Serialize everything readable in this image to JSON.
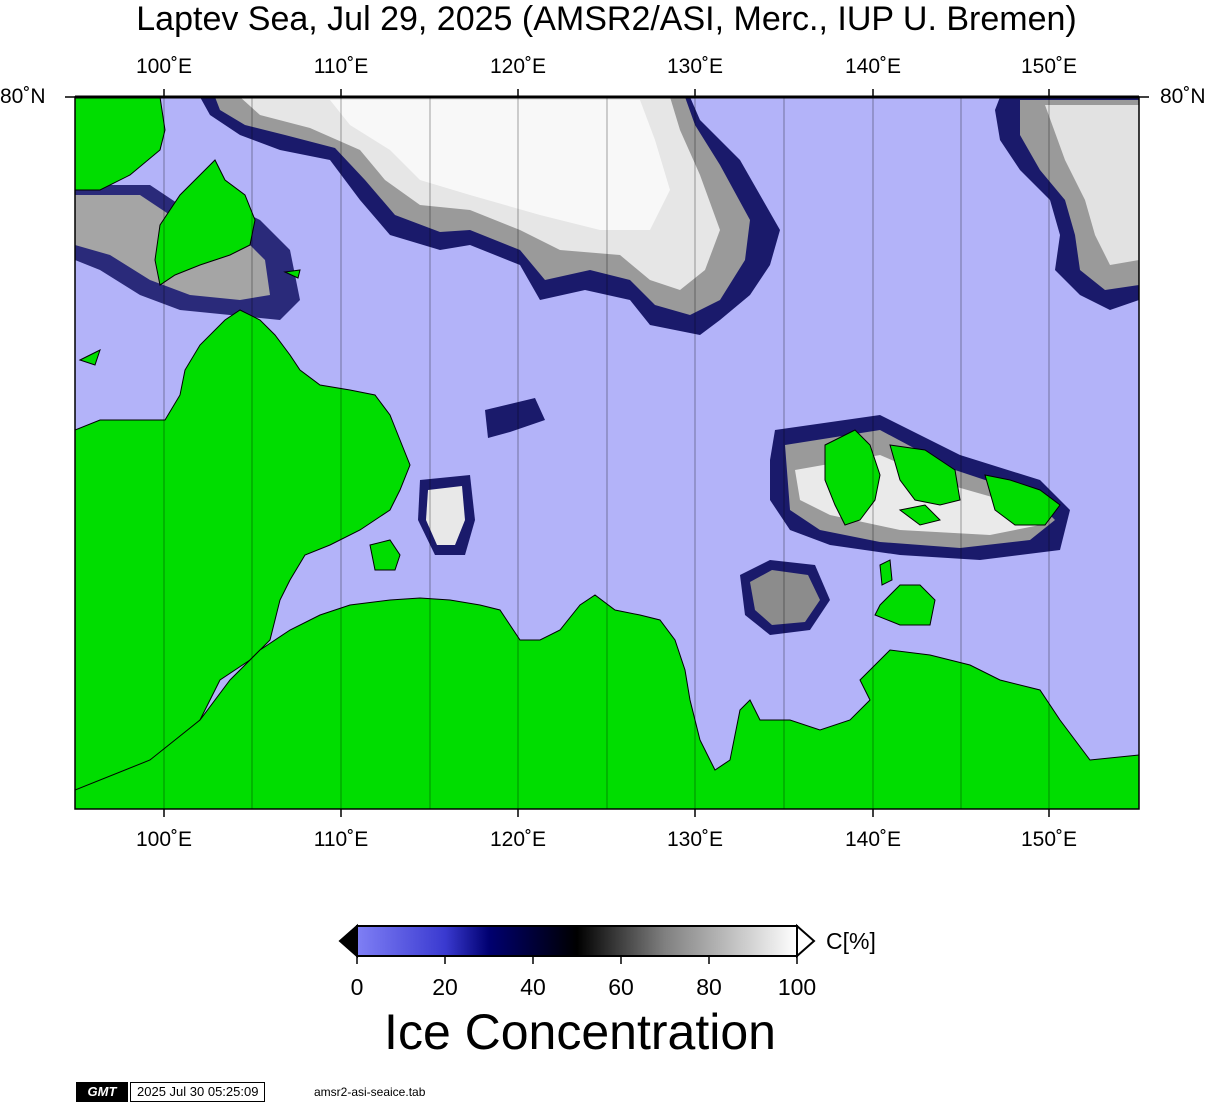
{
  "title": "Laptev Sea, Jul 29, 2025 (AMSR2/ASI, Merc., IUP U. Bremen)",
  "map": {
    "lon_labels": [
      "100˚E",
      "110˚E",
      "120˚E",
      "130˚E",
      "140˚E",
      "150˚E"
    ],
    "lat_label_left": "80˚N",
    "lat_label_right": "80˚N",
    "lon_range": [
      95,
      155
    ],
    "colors": {
      "open_water": "#b3b3f9",
      "land": "#00dd00",
      "coast_outline": "#000000",
      "ice_high": "#f5f5f5",
      "ice_mid": "#808080",
      "ice_low": "#000066"
    }
  },
  "colorbar": {
    "ticks": [
      "0",
      "20",
      "40",
      "60",
      "80",
      "100"
    ],
    "unit": "C[%]",
    "title": "Ice Concentration",
    "stops": [
      "#7f7ff5",
      "#3a3ad0",
      "#000070",
      "#000000",
      "#808080",
      "#ffffff"
    ]
  },
  "footer": {
    "logo_text": "GMT",
    "timestamp": "2025 Jul 30 05:25:09",
    "filename": "amsr2-asi-seaice.tab"
  }
}
